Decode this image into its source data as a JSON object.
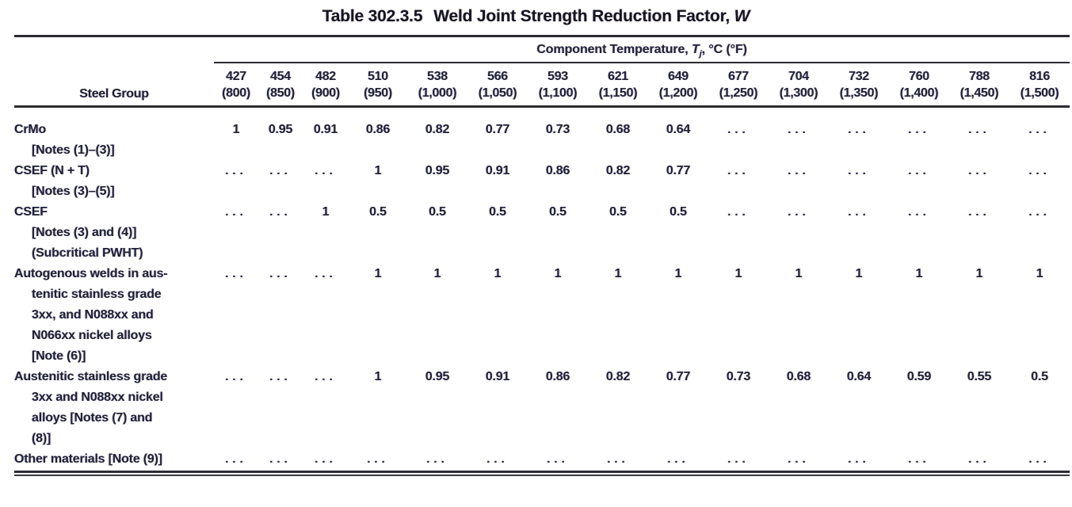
{
  "page": {
    "title_prefix": "Table 302.3.5",
    "title_main": "Weld Joint Strength Reduction Factor, ",
    "title_symbol": "W"
  },
  "colors": {
    "ink": "#1e2235",
    "rule": "#2b2b31",
    "background": "#ffffff"
  },
  "table": {
    "spanner": {
      "prefix": "Component Temperature, ",
      "symbol": "T",
      "subscript": "j",
      "suffix": ", °C (°F)"
    },
    "steel_group_header": "Steel Group",
    "temp_columns": [
      {
        "c": "427",
        "f": "(800)"
      },
      {
        "c": "454",
        "f": "(850)"
      },
      {
        "c": "482",
        "f": "(900)"
      },
      {
        "c": "510",
        "f": "(950)"
      },
      {
        "c": "538",
        "f": "(1,000)"
      },
      {
        "c": "566",
        "f": "(1,050)"
      },
      {
        "c": "593",
        "f": "(1,100)"
      },
      {
        "c": "621",
        "f": "(1,150)"
      },
      {
        "c": "649",
        "f": "(1,200)"
      },
      {
        "c": "677",
        "f": "(1,250)"
      },
      {
        "c": "704",
        "f": "(1,300)"
      },
      {
        "c": "732",
        "f": "(1,350)"
      },
      {
        "c": "760",
        "f": "(1,400)"
      },
      {
        "c": "788",
        "f": "(1,450)"
      },
      {
        "c": "816",
        "f": "(1,500)"
      }
    ],
    "rows": [
      {
        "label_lines": [
          "CrMo",
          "[Notes (1)–(3)]"
        ],
        "values": [
          "1",
          "0.95",
          "0.91",
          "0.86",
          "0.82",
          "0.77",
          "0.73",
          "0.68",
          "0.64",
          "...",
          "...",
          "...",
          "...",
          "...",
          "..."
        ]
      },
      {
        "label_lines": [
          "CSEF (N + T)",
          "[Notes (3)–(5)]"
        ],
        "values": [
          "...",
          "...",
          "...",
          "1",
          "0.95",
          "0.91",
          "0.86",
          "0.82",
          "0.77",
          "...",
          "...",
          "...",
          "...",
          "...",
          "..."
        ]
      },
      {
        "label_lines": [
          "CSEF",
          "[Notes (3) and (4)]",
          "(Subcritical PWHT)"
        ],
        "values": [
          "...",
          "...",
          "1",
          "0.5",
          "0.5",
          "0.5",
          "0.5",
          "0.5",
          "0.5",
          "...",
          "...",
          "...",
          "...",
          "...",
          "..."
        ]
      },
      {
        "label_lines": [
          "Autogenous welds in aus-",
          "tenitic stainless grade",
          "3xx, and N088xx and",
          "N066xx nickel alloys",
          "[Note (6)]"
        ],
        "values": [
          "...",
          "...",
          "...",
          "1",
          "1",
          "1",
          "1",
          "1",
          "1",
          "1",
          "1",
          "1",
          "1",
          "1",
          "1"
        ]
      },
      {
        "label_lines": [
          "Austenitic stainless grade",
          "3xx and N088xx nickel",
          "alloys [Notes (7) and",
          "(8)]"
        ],
        "values": [
          "...",
          "...",
          "...",
          "1",
          "0.95",
          "0.91",
          "0.86",
          "0.82",
          "0.77",
          "0.73",
          "0.68",
          "0.64",
          "0.59",
          "0.55",
          "0.5"
        ]
      },
      {
        "label_lines": [
          "Other materials [Note (9)]"
        ],
        "values": [
          "...",
          "...",
          "...",
          "...",
          "...",
          "...",
          "...",
          "...",
          "...",
          "...",
          "...",
          "...",
          "...",
          "...",
          "..."
        ]
      }
    ]
  }
}
